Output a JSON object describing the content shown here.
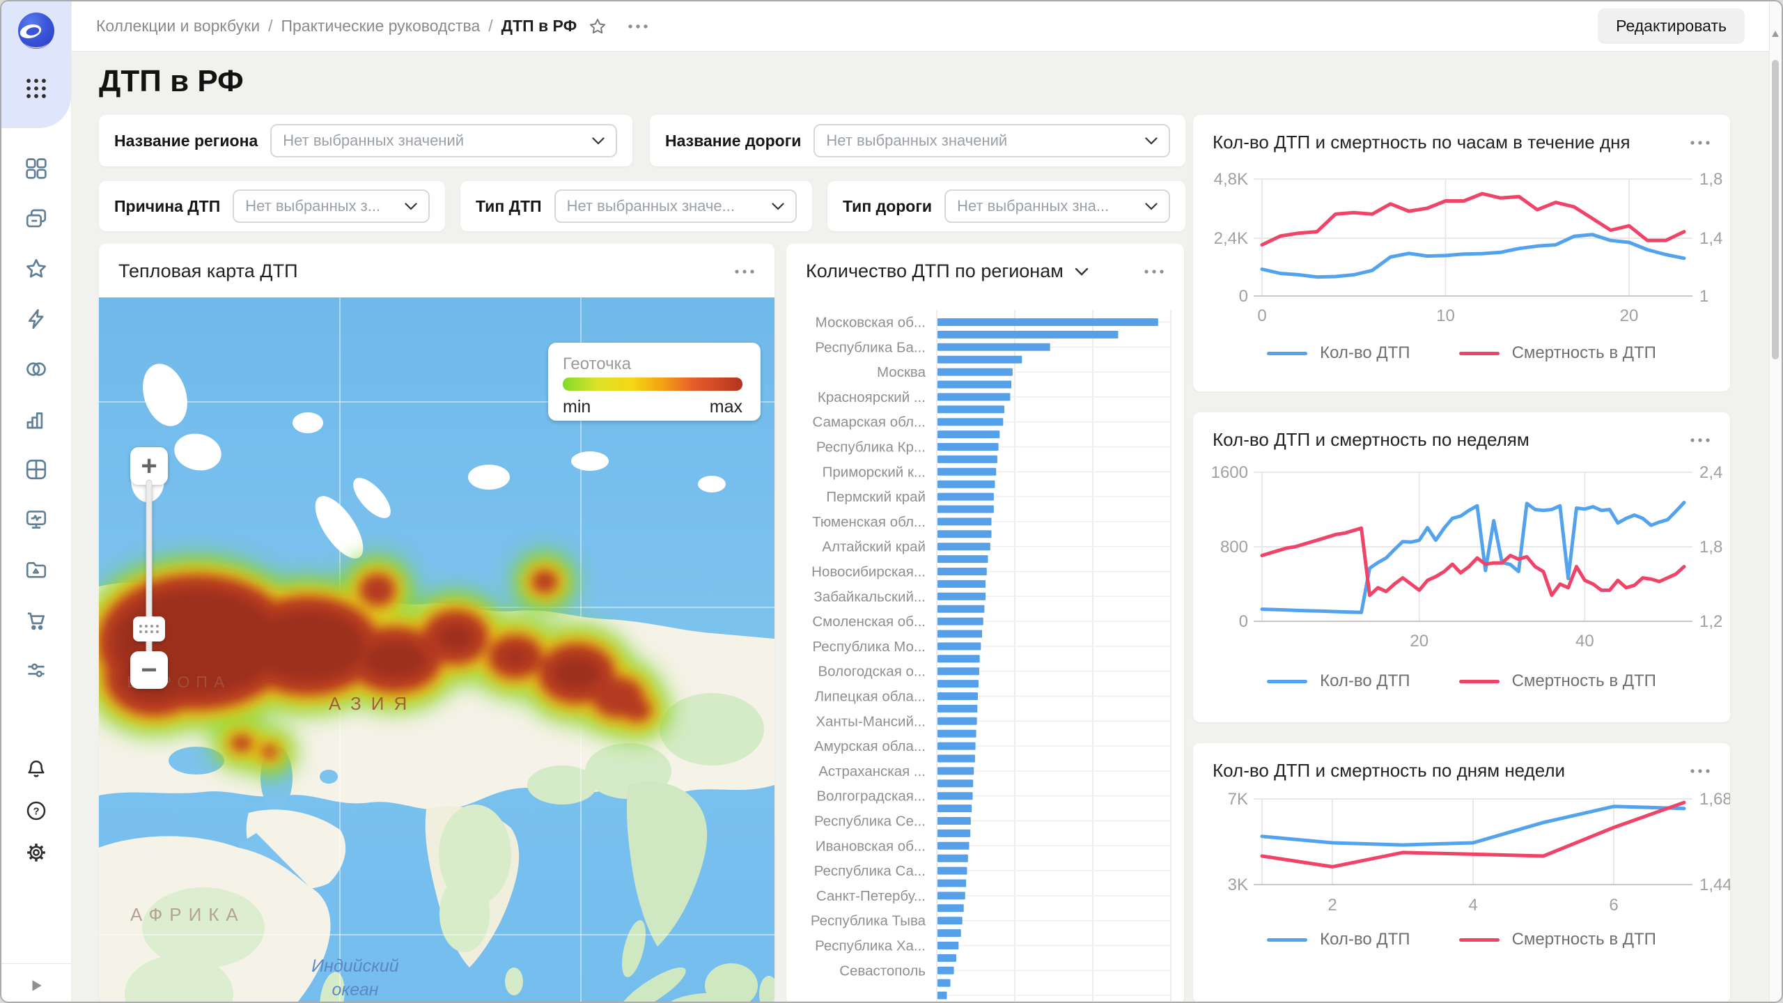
{
  "window": {
    "edit_button": "Редактировать"
  },
  "breadcrumbs": {
    "items": [
      "Коллекции и воркбуки",
      "Практические руководства",
      "ДТП в РФ"
    ],
    "separator": "/"
  },
  "page": {
    "title": "ДТП в РФ"
  },
  "filters": [
    {
      "label": "Название региона",
      "placeholder": "Нет выбранных значений"
    },
    {
      "label": "Название дороги",
      "placeholder": "Нет выбранных значений"
    },
    {
      "label": "Причина ДТП",
      "placeholder": "Нет выбранных з..."
    },
    {
      "label": "Тип ДТП",
      "placeholder": "Нет выбранных значе..."
    },
    {
      "label": "Тип дороги",
      "placeholder": "Нет выбранных зна..."
    }
  ],
  "map_card": {
    "title": "Тепловая карта ДТП",
    "legend": {
      "title": "Геоточка",
      "min": "min",
      "max": "max"
    },
    "labels": {
      "europe": "ЕВРОПА",
      "asia": "АЗИЯ",
      "africa": "АФРИКА",
      "ocean_line1": "Индийский",
      "ocean_line2": "океан"
    },
    "controls": {
      "zoom_in": "+",
      "zoom_out": "−"
    }
  },
  "colors": {
    "accident_blue": "#53a2ee",
    "death_red": "#f04368",
    "bar_blue": "#56a0e9",
    "sidebar_icon": "#5e7f96",
    "heat_gradient": [
      "#7fdb2c",
      "#d8e22a",
      "#f6d713",
      "#f2a313",
      "#e85f2b",
      "#b4321f"
    ]
  },
  "chart_data": [
    {
      "id": "accidents-by-region",
      "type": "bar",
      "orientation": "horizontal",
      "title": "Количество ДТП по регионам",
      "note": "category labels shown for every second bar; value axis clipped out of view, values are relative lengths 0-100",
      "visible_category_labels": [
        "Московская об...",
        "Республика Ба...",
        "Москва",
        "Красноярский ...",
        "Самарская обл...",
        "Республика Кр...",
        "Приморский к...",
        "Пермский край",
        "Тюменская обл...",
        "Алтайский край",
        "Новосибирская...",
        "Забайкальский...",
        "Смоленская об...",
        "Республика Мо...",
        "Вологодская о...",
        "Липецкая обла...",
        "Ханты-Мансий...",
        "Амурская обла...",
        "Астраханская ...",
        "Волгоградская...",
        "Республика Се...",
        "Ивановская об...",
        "Республика Са...",
        "Санкт-Петербу...",
        "Республика Тыва",
        "Республика Ха...",
        "Севастополь"
      ],
      "values": [
        94,
        77,
        48,
        36,
        32,
        31.5,
        31,
        28.5,
        28,
        26.5,
        26,
        25.5,
        25,
        24.5,
        24,
        24,
        23,
        23,
        22.5,
        21.5,
        21,
        20.5,
        20.5,
        20,
        19.5,
        19,
        18.5,
        18,
        17.8,
        17.5,
        17.2,
        17,
        16.8,
        16.5,
        16.2,
        16,
        15.5,
        15.2,
        15,
        14.6,
        14.2,
        14,
        13.5,
        13,
        12.6,
        12.2,
        11.8,
        11.2,
        10.6,
        10,
        9,
        8,
        7,
        5.5,
        4
      ]
    },
    {
      "id": "accidents-by-hour",
      "type": "line",
      "title": "Кол-во ДТП и смертность по часам в течение дня",
      "x_range": [
        0,
        23
      ],
      "x_tick_values": [
        0,
        10,
        20
      ],
      "x_tick_labels": [
        "0",
        "10",
        "20"
      ],
      "left_axis": {
        "labels": [
          "4,8K",
          "2,4K",
          "0"
        ],
        "range": [
          0,
          4800
        ]
      },
      "right_axis": {
        "labels": [
          "1,8",
          "1,4",
          "1"
        ],
        "range": [
          1.0,
          1.8
        ]
      },
      "legend_position": "bottom",
      "series": [
        {
          "name": "Кол-во ДТП",
          "axis": "left",
          "color": "#53a2ee",
          "values": [
            1100,
            930,
            870,
            780,
            800,
            870,
            1050,
            1600,
            1750,
            1640,
            1660,
            1720,
            1740,
            1790,
            1950,
            2050,
            2100,
            2450,
            2520,
            2280,
            2200,
            1900,
            1700,
            1550
          ]
        },
        {
          "name": "Смертность в ДТП",
          "axis": "right",
          "color": "#f04368",
          "values": [
            1.35,
            1.41,
            1.43,
            1.44,
            1.56,
            1.57,
            1.56,
            1.63,
            1.58,
            1.6,
            1.65,
            1.65,
            1.7,
            1.67,
            1.68,
            1.59,
            1.64,
            1.61,
            1.53,
            1.45,
            1.48,
            1.38,
            1.38,
            1.44
          ]
        }
      ]
    },
    {
      "id": "accidents-by-week",
      "type": "line",
      "title": "Кол-во ДТП и смертность по неделям",
      "x_range": [
        1,
        52
      ],
      "x_tick_values": [
        20,
        40
      ],
      "x_tick_labels": [
        "20",
        "40"
      ],
      "left_axis": {
        "labels": [
          "1600",
          "800",
          "0"
        ],
        "range": [
          0,
          1600
        ]
      },
      "right_axis": {
        "labels": [
          "2,4",
          "1,8",
          "1,2"
        ],
        "range": [
          1.2,
          2.4
        ]
      },
      "legend_position": "bottom",
      "series": [
        {
          "name": "Кол-во ДТП",
          "axis": "left",
          "color": "#53a2ee",
          "values": [
            130,
            127,
            124,
            121,
            118,
            115,
            112,
            110,
            107,
            104,
            101,
            98,
            95,
            570,
            630,
            680,
            770,
            855,
            850,
            870,
            1005,
            870,
            1000,
            1105,
            1130,
            1190,
            1240,
            545,
            1080,
            630,
            610,
            535,
            1265,
            1200,
            1190,
            1200,
            1240,
            460,
            1215,
            1205,
            1230,
            1190,
            1200,
            1055,
            1105,
            1140,
            1105,
            1030,
            1065,
            1090,
            1180,
            1275
          ]
        },
        {
          "name": "Смертность в ДТП",
          "axis": "right",
          "color": "#f04368",
          "values": [
            1.73,
            1.75,
            1.77,
            1.79,
            1.8,
            1.82,
            1.84,
            1.86,
            1.88,
            1.9,
            1.91,
            1.93,
            1.95,
            1.41,
            1.47,
            1.44,
            1.5,
            1.55,
            1.5,
            1.45,
            1.53,
            1.56,
            1.6,
            1.66,
            1.59,
            1.64,
            1.71,
            1.66,
            1.67,
            1.67,
            1.73,
            1.7,
            1.72,
            1.64,
            1.6,
            1.41,
            1.5,
            1.47,
            1.64,
            1.53,
            1.5,
            1.45,
            1.45,
            1.53,
            1.47,
            1.49,
            1.55,
            1.54,
            1.52,
            1.55,
            1.58,
            1.64
          ]
        }
      ]
    },
    {
      "id": "accidents-by-weekday",
      "type": "line",
      "title": "Кол-во ДТП и смертность по дням недели",
      "x_range": [
        1,
        7
      ],
      "x_tick_values": [
        2,
        4,
        6
      ],
      "x_tick_labels": [
        "2",
        "4",
        "6"
      ],
      "left_axis": {
        "labels": [
          "7K",
          "3K"
        ],
        "range": [
          3000,
          7000
        ]
      },
      "right_axis": {
        "labels": [
          "1,68",
          "1,44"
        ],
        "range": [
          1.44,
          1.68
        ]
      },
      "legend_position": "bottom",
      "series": [
        {
          "name": "Кол-во ДТП",
          "axis": "left",
          "color": "#53a2ee",
          "values": [
            5250,
            4950,
            4850,
            4950,
            5900,
            6650,
            6550
          ]
        },
        {
          "name": "Смертность в ДТП",
          "axis": "right",
          "color": "#f04368",
          "values": [
            1.52,
            1.49,
            1.53,
            1.525,
            1.52,
            1.6,
            1.67
          ]
        }
      ]
    }
  ],
  "sidebar": {
    "nav_icons": [
      "widgets",
      "collections",
      "favorites",
      "quick-actions",
      "datasets",
      "charts",
      "tables",
      "dashboards",
      "files",
      "marketplace",
      "services"
    ],
    "footer_icons": [
      "notifications",
      "help",
      "settings"
    ],
    "collapse_icon": "expand"
  }
}
